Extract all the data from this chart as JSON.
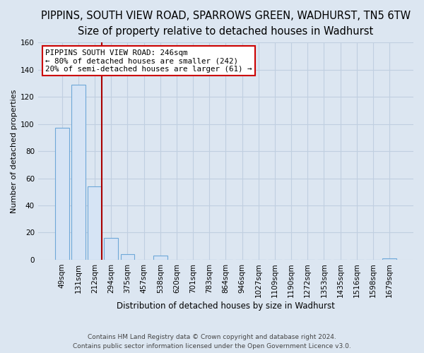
{
  "title": "PIPPINS, SOUTH VIEW ROAD, SPARROWS GREEN, WADHURST, TN5 6TW",
  "subtitle": "Size of property relative to detached houses in Wadhurst",
  "xlabel": "Distribution of detached houses by size in Wadhurst",
  "ylabel": "Number of detached properties",
  "bar_labels": [
    "49sqm",
    "131sqm",
    "212sqm",
    "294sqm",
    "375sqm",
    "457sqm",
    "538sqm",
    "620sqm",
    "701sqm",
    "783sqm",
    "864sqm",
    "946sqm",
    "1027sqm",
    "1109sqm",
    "1190sqm",
    "1272sqm",
    "1353sqm",
    "1435sqm",
    "1516sqm",
    "1598sqm",
    "1679sqm"
  ],
  "bar_heights": [
    97,
    129,
    54,
    16,
    4,
    0,
    3,
    0,
    0,
    0,
    0,
    0,
    0,
    0,
    0,
    0,
    0,
    0,
    0,
    0,
    1
  ],
  "bar_fill_color": "#d6e4f5",
  "bar_edge_color": "#6ea8d8",
  "highlight_bar_index": 2,
  "highlight_color": "#aa0000",
  "ylim": [
    0,
    160
  ],
  "yticks": [
    0,
    20,
    40,
    60,
    80,
    100,
    120,
    140,
    160
  ],
  "annotation_title": "PIPPINS SOUTH VIEW ROAD: 246sqm",
  "annotation_line1": "← 80% of detached houses are smaller (242)",
  "annotation_line2": "20% of semi-detached houses are larger (61) →",
  "annotation_box_color": "#ffffff",
  "annotation_border_color": "#cc0000",
  "footer_line1": "Contains HM Land Registry data © Crown copyright and database right 2024.",
  "footer_line2": "Contains public sector information licensed under the Open Government Licence v3.0.",
  "background_color": "#dce6f1",
  "plot_bg_color": "#dce6f1",
  "grid_color": "#c0cfe0",
  "title_fontsize": 10.5,
  "subtitle_fontsize": 9.5,
  "xlabel_fontsize": 8.5,
  "ylabel_fontsize": 8,
  "tick_fontsize": 7.5,
  "annotation_fontsize": 7.8,
  "footer_fontsize": 6.5
}
